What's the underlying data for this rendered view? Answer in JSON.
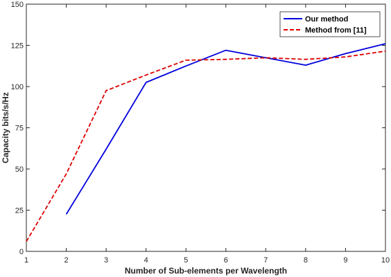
{
  "chart_data": {
    "type": "line",
    "title": "",
    "xlabel": "Number of Sub-elements per Wavelength",
    "ylabel": "Capacity bits/s/Hz",
    "xlim": [
      1,
      10
    ],
    "ylim": [
      0,
      150
    ],
    "xticks": [
      1,
      2,
      3,
      4,
      5,
      6,
      7,
      8,
      9,
      10
    ],
    "yticks": [
      0,
      25,
      50,
      75,
      100,
      125,
      150
    ],
    "grid": false,
    "legend_position": "top-right",
    "series": [
      {
        "name": "Our method",
        "color": "#0000dd",
        "style": "solid",
        "x": [
          2,
          3,
          4,
          5,
          6,
          7,
          8,
          9,
          10
        ],
        "y": [
          22.5,
          62,
          102.5,
          112.5,
          122,
          117.5,
          113,
          120,
          126
        ]
      },
      {
        "name": "Method from [11]",
        "color": "#dd0000",
        "style": "dashed",
        "x": [
          1,
          2,
          3,
          4,
          5,
          6,
          7,
          8,
          9,
          10
        ],
        "y": [
          6,
          47,
          97.5,
          107,
          116,
          116.5,
          117.5,
          116.5,
          118,
          121.5
        ]
      }
    ]
  }
}
